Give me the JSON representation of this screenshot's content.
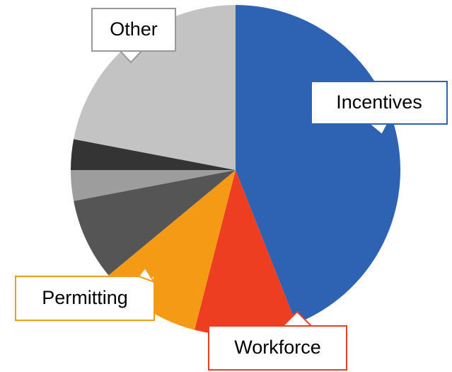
{
  "chart_data": {
    "type": "pie",
    "categories": [
      "Incentives",
      "Workforce",
      "Permitting",
      null,
      null,
      null,
      "Other"
    ],
    "values": [
      44,
      10,
      10,
      8,
      3,
      3,
      22
    ],
    "colors": [
      "#2e62b2",
      "#ee3e22",
      "#f59a14",
      "#555555",
      "#9d9d9d",
      "#343434",
      "#c3c3c3"
    ]
  }
}
